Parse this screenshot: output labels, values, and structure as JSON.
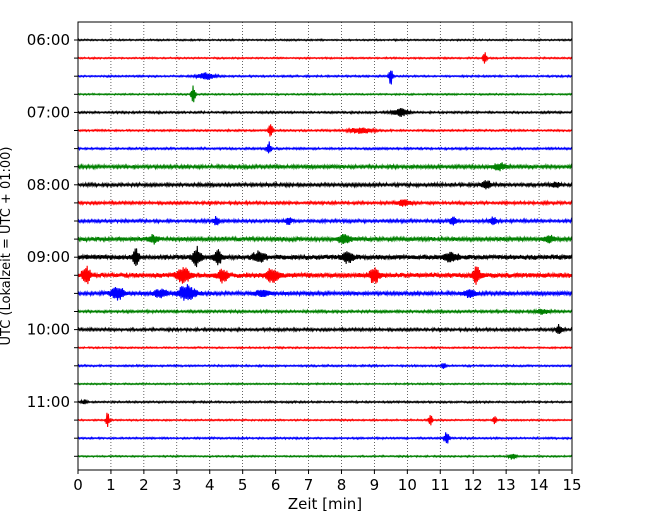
{
  "chart_data": {
    "type": "line",
    "title": "",
    "xlabel": "Zeit  [min]",
    "ylabel": "UTC (Lokalzeit = UTC + 01:00)",
    "xlim": [
      0,
      15
    ],
    "x_ticks": [
      "0",
      "1",
      "2",
      "3",
      "4",
      "5",
      "6",
      "7",
      "8",
      "9",
      "10",
      "11",
      "12",
      "13",
      "14",
      "15"
    ],
    "y_tick_labels": [
      "06:00",
      "07:00",
      "08:00",
      "09:00",
      "10:00",
      "11:00"
    ],
    "grid_x": true,
    "minutes_per_trace": 15,
    "series_colors": [
      "#000000",
      "#ff0000",
      "#0000ff",
      "#008000"
    ],
    "traces": [
      {
        "start": "06:00",
        "noise": 0.6,
        "events": []
      },
      {
        "start": "06:15",
        "noise": 0.6,
        "events": [
          {
            "t": 12.35,
            "amp": 7,
            "w": 0.05
          }
        ]
      },
      {
        "start": "06:30",
        "noise": 0.7,
        "events": [
          {
            "t": 3.9,
            "amp": 3.5,
            "w": 0.25
          },
          {
            "t": 9.5,
            "amp": 9,
            "w": 0.06
          }
        ]
      },
      {
        "start": "06:45",
        "noise": 0.6,
        "events": [
          {
            "t": 3.5,
            "amp": 9,
            "w": 0.06
          }
        ]
      },
      {
        "start": "07:00",
        "noise": 0.8,
        "events": [
          {
            "t": 9.8,
            "amp": 4,
            "w": 0.25
          }
        ]
      },
      {
        "start": "07:15",
        "noise": 0.7,
        "events": [
          {
            "t": 5.85,
            "amp": 7,
            "w": 0.06
          },
          {
            "t": 8.6,
            "amp": 3,
            "w": 0.35
          }
        ]
      },
      {
        "start": "07:30",
        "noise": 0.8,
        "events": [
          {
            "t": 5.8,
            "amp": 7,
            "w": 0.06
          }
        ]
      },
      {
        "start": "07:45",
        "noise": 1.4,
        "events": [
          {
            "t": 12.8,
            "amp": 3,
            "w": 0.2
          }
        ]
      },
      {
        "start": "08:00",
        "noise": 1.3,
        "events": [
          {
            "t": 12.4,
            "amp": 4,
            "w": 0.15
          },
          {
            "t": 14.5,
            "amp": 3,
            "w": 0.1
          }
        ]
      },
      {
        "start": "08:15",
        "noise": 1.1,
        "events": [
          {
            "t": 9.9,
            "amp": 3,
            "w": 0.2
          }
        ]
      },
      {
        "start": "08:30",
        "noise": 1.2,
        "events": [
          {
            "t": 4.2,
            "amp": 4.5,
            "w": 0.08
          },
          {
            "t": 6.4,
            "amp": 3.5,
            "w": 0.1
          },
          {
            "t": 11.4,
            "amp": 4,
            "w": 0.1
          },
          {
            "t": 12.6,
            "amp": 4,
            "w": 0.1
          }
        ]
      },
      {
        "start": "08:45",
        "noise": 1.6,
        "events": [
          {
            "t": 2.3,
            "amp": 4,
            "w": 0.15
          },
          {
            "t": 8.1,
            "amp": 4,
            "w": 0.2
          },
          {
            "t": 14.3,
            "amp": 4,
            "w": 0.15
          }
        ]
      },
      {
        "start": "09:00",
        "noise": 2.0,
        "events": [
          {
            "t": 1.75,
            "amp": 8,
            "w": 0.1
          },
          {
            "t": 3.6,
            "amp": 9,
            "w": 0.12
          },
          {
            "t": 4.25,
            "amp": 9,
            "w": 0.1
          },
          {
            "t": 5.5,
            "amp": 5,
            "w": 0.2
          },
          {
            "t": 8.2,
            "amp": 5,
            "w": 0.2
          },
          {
            "t": 11.3,
            "amp": 4,
            "w": 0.2
          }
        ]
      },
      {
        "start": "09:15",
        "noise": 2.0,
        "events": [
          {
            "t": 0.25,
            "amp": 8,
            "w": 0.12
          },
          {
            "t": 3.2,
            "amp": 7,
            "w": 0.2
          },
          {
            "t": 4.4,
            "amp": 6,
            "w": 0.15
          },
          {
            "t": 5.9,
            "amp": 7,
            "w": 0.2
          },
          {
            "t": 9.0,
            "amp": 7,
            "w": 0.15
          },
          {
            "t": 12.1,
            "amp": 8,
            "w": 0.12
          }
        ]
      },
      {
        "start": "09:30",
        "noise": 1.5,
        "events": [
          {
            "t": 1.2,
            "amp": 6,
            "w": 0.2
          },
          {
            "t": 2.5,
            "amp": 4,
            "w": 0.2
          },
          {
            "t": 3.3,
            "amp": 8,
            "w": 0.25
          },
          {
            "t": 5.6,
            "amp": 3,
            "w": 0.2
          },
          {
            "t": 11.9,
            "amp": 4,
            "w": 0.15
          }
        ]
      },
      {
        "start": "09:45",
        "noise": 1.0,
        "events": [
          {
            "t": 14.1,
            "amp": 2.5,
            "w": 0.2
          }
        ]
      },
      {
        "start": "10:00",
        "noise": 1.1,
        "events": [
          {
            "t": 14.6,
            "amp": 5,
            "w": 0.08
          }
        ]
      },
      {
        "start": "10:15",
        "noise": 0.6,
        "events": []
      },
      {
        "start": "10:30",
        "noise": 0.7,
        "events": [
          {
            "t": 11.1,
            "amp": 4,
            "w": 0.05
          }
        ]
      },
      {
        "start": "10:45",
        "noise": 0.6,
        "events": []
      },
      {
        "start": "11:00",
        "noise": 0.7,
        "events": [
          {
            "t": 0.2,
            "amp": 2.5,
            "w": 0.08
          }
        ]
      },
      {
        "start": "11:15",
        "noise": 0.6,
        "events": [
          {
            "t": 0.9,
            "amp": 8,
            "w": 0.05
          },
          {
            "t": 10.7,
            "amp": 6,
            "w": 0.05
          },
          {
            "t": 12.65,
            "amp": 4,
            "w": 0.05
          }
        ]
      },
      {
        "start": "11:30",
        "noise": 0.7,
        "events": [
          {
            "t": 11.2,
            "amp": 7,
            "w": 0.07
          }
        ]
      },
      {
        "start": "11:45",
        "noise": 0.6,
        "events": [
          {
            "t": 13.2,
            "amp": 3,
            "w": 0.1
          }
        ]
      }
    ]
  }
}
